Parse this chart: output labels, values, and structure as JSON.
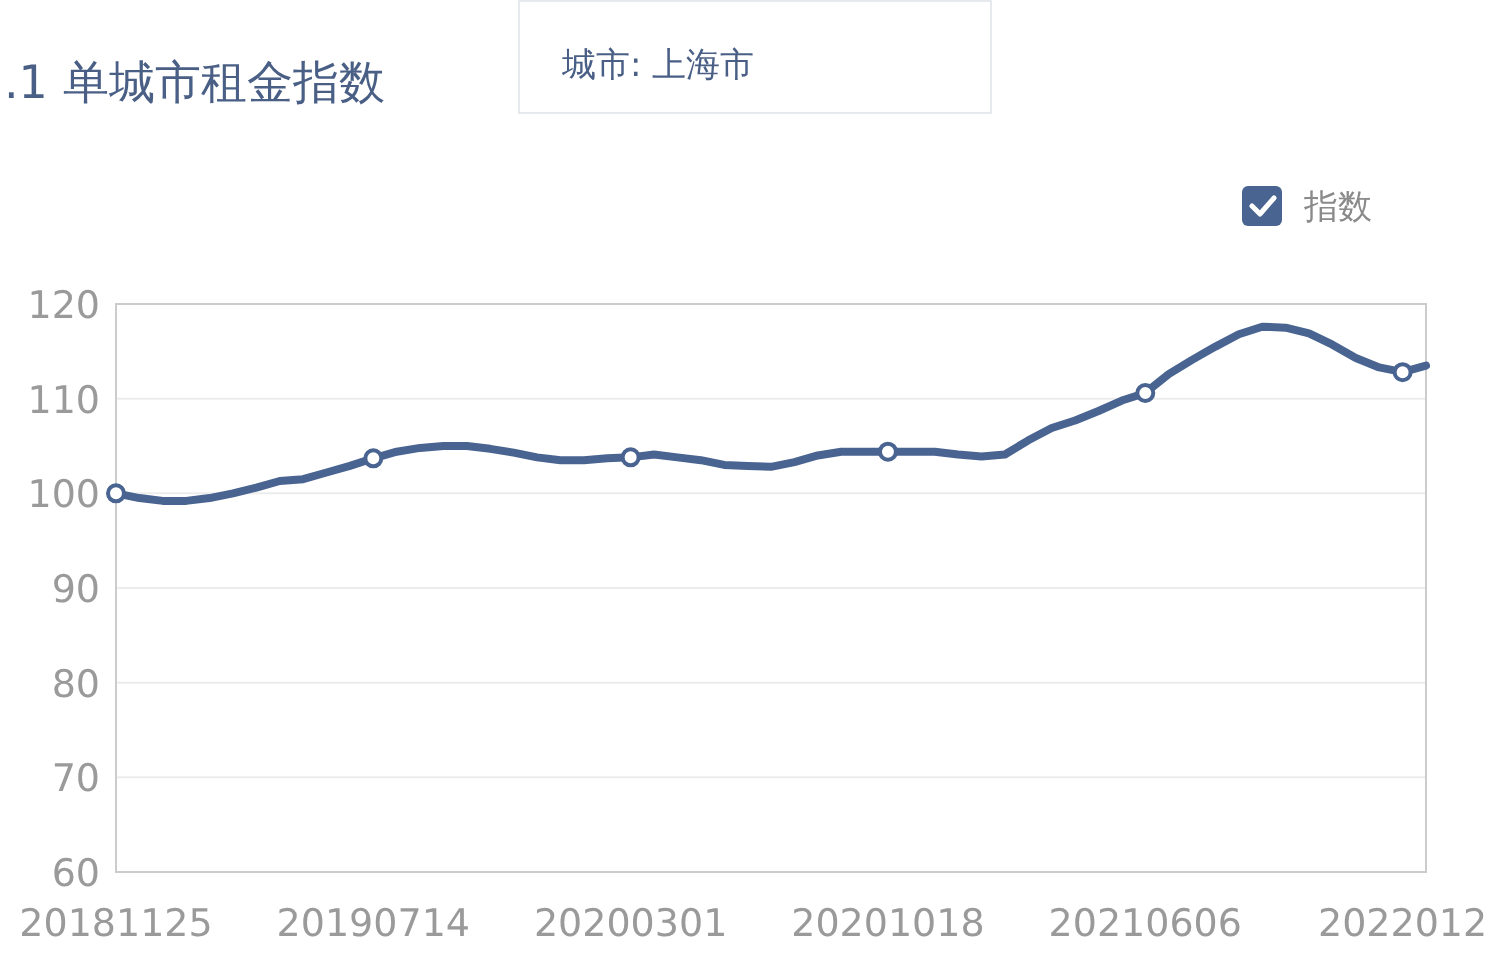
{
  "chart_data": {
    "type": "line",
    "title": ".1 单城市租金指数",
    "subtitle": "城市: 上海市",
    "categories": [
      "20181125",
      null,
      null,
      null,
      null,
      null,
      null,
      null,
      null,
      null,
      null,
      "20190714",
      null,
      null,
      null,
      null,
      null,
      null,
      null,
      null,
      null,
      null,
      "20200301",
      null,
      null,
      null,
      null,
      null,
      null,
      null,
      null,
      null,
      null,
      "20201018",
      null,
      null,
      null,
      null,
      null,
      null,
      null,
      null,
      null,
      null,
      "20210606",
      null,
      null,
      null,
      null,
      null,
      null,
      null,
      null,
      null,
      null,
      "2022012",
      null
    ],
    "series": [
      {
        "name": "指数",
        "color": "#4a6491",
        "values": [
          100,
          99.5,
          99.2,
          99.2,
          99.5,
          100,
          100.6,
          101.3,
          101.5,
          102.2,
          102.9,
          103.7,
          104.4,
          104.8,
          105,
          105,
          104.7,
          104.3,
          103.8,
          103.5,
          103.5,
          103.7,
          103.8,
          104.1,
          103.8,
          103.5,
          103,
          102.9,
          102.8,
          103.3,
          104,
          104.4,
          104.4,
          104.4,
          104.4,
          104.4,
          104.1,
          103.9,
          104.1,
          105.6,
          106.9,
          107.7,
          108.7,
          109.8,
          110.6,
          112.6,
          114.1,
          115.5,
          116.8,
          117.6,
          117.5,
          116.9,
          115.7,
          114.3,
          113.3,
          112.8,
          113.5
        ]
      },
      {
        "type": "scatter",
        "color": "#4a6491",
        "marker": "circle",
        "x": [
          "20181125",
          "20190714",
          "20200301",
          "20201018",
          "20210606",
          "2022012"
        ],
        "values": [
          100,
          103.7,
          103.8,
          104.4,
          110.6,
          112.8
        ]
      }
    ],
    "ylim": [
      60,
      120
    ],
    "yticks": [
      60,
      70,
      80,
      90,
      100,
      110,
      120
    ],
    "grid": "y",
    "legend": "top right"
  }
}
